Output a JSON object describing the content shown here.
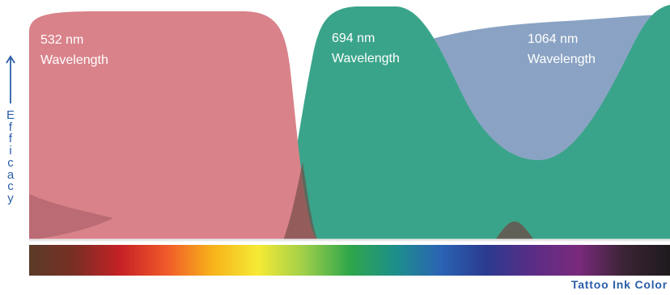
{
  "chart_data": {
    "type": "area",
    "title": "",
    "xlabel": "Tattoo Ink Color",
    "ylabel": "Efficacy",
    "series": [
      {
        "name": "532 nm Wavelength",
        "label_line1": "532 nm",
        "label_line2": "Wavelength",
        "color": "#d9828a"
      },
      {
        "name": "694 nm Wavelength",
        "label_line1": "694 nm",
        "label_line2": "Wavelength",
        "color": "#3aa48a"
      },
      {
        "name": "1064 nm Wavelength",
        "label_line1": "1064 nm",
        "label_line2": "Wavelength",
        "color": "#8aa3c4"
      }
    ],
    "color_spectrum": [
      "#5a3b28",
      "#7a2e24",
      "#c62126",
      "#f0592a",
      "#f7b21a",
      "#f6ea34",
      "#9fcf4a",
      "#2fa64a",
      "#1d8f8a",
      "#2a63b4",
      "#2b3a8f",
      "#5b2d86",
      "#7a2a7d",
      "#3a2434",
      "#1f1a1e"
    ],
    "grid": false,
    "legend": "inline labels"
  }
}
